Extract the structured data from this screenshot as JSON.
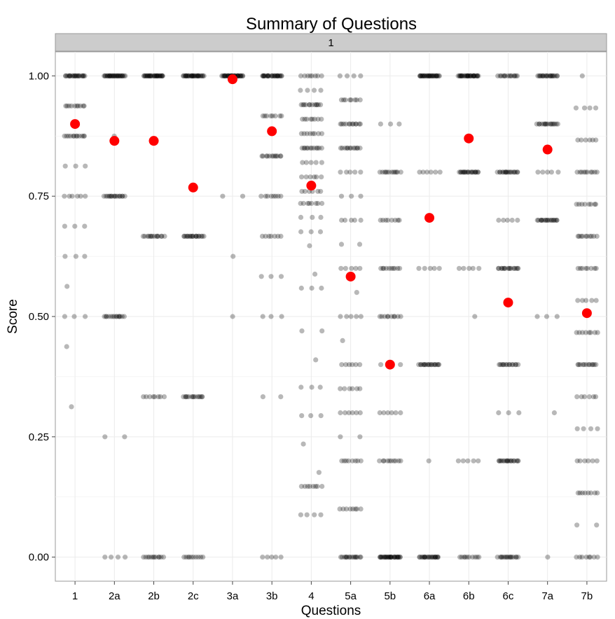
{
  "chart_data": {
    "type": "scatter",
    "title": "Summary of Questions",
    "facet_label": "1",
    "xlabel": "Questions",
    "ylabel": "Score",
    "categories": [
      "1",
      "2a",
      "2b",
      "2c",
      "3a",
      "3b",
      "4",
      "5a",
      "5b",
      "6a",
      "6b",
      "6c",
      "7a",
      "7b"
    ],
    "yticks": [
      0.0,
      0.25,
      0.5,
      0.75,
      1.0
    ],
    "ytick_labels": [
      "0.00",
      "0.25",
      "0.50",
      "0.75",
      "1.00"
    ],
    "ylim": [
      -0.05,
      1.05
    ],
    "grid": true,
    "point_color": "#000000",
    "mean_color": "#ff0000",
    "series": [
      {
        "values": [
          {
            "category": "1",
            "levels": [
              [
                1.0,
                22
              ],
              [
                0.9375,
                10
              ],
              [
                0.875,
                12
              ],
              [
                0.8125,
                3
              ],
              [
                0.75,
                6
              ],
              [
                0.6875,
                3
              ],
              [
                0.625,
                3
              ],
              [
                0.5625,
                1
              ],
              [
                0.5,
                3
              ],
              [
                0.4375,
                1
              ],
              [
                0.3125,
                1
              ]
            ]
          },
          {
            "category": "2a",
            "levels": [
              [
                1.0,
                30
              ],
              [
                0.875,
                1
              ],
              [
                0.75,
                16
              ],
              [
                0.5,
                14
              ],
              [
                0.25,
                2
              ],
              [
                0.0,
                4
              ]
            ]
          },
          {
            "category": "2b",
            "levels": [
              [
                1.0,
                30
              ],
              [
                0.6667,
                14
              ],
              [
                0.3333,
                8
              ],
              [
                0.0,
                12
              ]
            ]
          },
          {
            "category": "2c",
            "levels": [
              [
                1.0,
                30
              ],
              [
                0.6667,
                18
              ],
              [
                0.3333,
                14
              ],
              [
                0.0,
                10
              ]
            ]
          },
          {
            "category": "3a",
            "levels": [
              [
                1.0,
                34
              ],
              [
                0.75,
                2
              ],
              [
                0.625,
                1
              ],
              [
                0.5,
                1
              ]
            ]
          },
          {
            "category": "3b",
            "levels": [
              [
                1.0,
                26
              ],
              [
                0.9167,
                8
              ],
              [
                0.8333,
                12
              ],
              [
                0.75,
                8
              ],
              [
                0.6667,
                7
              ],
              [
                0.5833,
                3
              ],
              [
                0.5,
                3
              ],
              [
                0.3333,
                2
              ],
              [
                0.0,
                5
              ]
            ]
          },
          {
            "category": "4",
            "levels": [
              [
                1.0,
                8
              ],
              [
                0.97,
                4
              ],
              [
                0.94,
                12
              ],
              [
                0.91,
                8
              ],
              [
                0.88,
                8
              ],
              [
                0.85,
                12
              ],
              [
                0.82,
                5
              ],
              [
                0.79,
                6
              ],
              [
                0.76,
                6
              ],
              [
                0.735,
                8
              ],
              [
                0.706,
                3
              ],
              [
                0.676,
                3
              ],
              [
                0.647,
                1
              ],
              [
                0.588,
                1
              ],
              [
                0.559,
                3
              ],
              [
                0.47,
                2
              ],
              [
                0.41,
                1
              ],
              [
                0.353,
                3
              ],
              [
                0.294,
                3
              ],
              [
                0.235,
                1
              ],
              [
                0.176,
                1
              ],
              [
                0.147,
                8
              ],
              [
                0.088,
                4
              ]
            ]
          },
          {
            "category": "5a",
            "levels": [
              [
                1.0,
                4
              ],
              [
                0.95,
                8
              ],
              [
                0.9,
                12
              ],
              [
                0.85,
                12
              ],
              [
                0.8,
                5
              ],
              [
                0.75,
                3
              ],
              [
                0.7,
                5
              ],
              [
                0.65,
                2
              ],
              [
                0.6,
                5
              ],
              [
                0.55,
                1
              ],
              [
                0.5,
                5
              ],
              [
                0.45,
                1
              ],
              [
                0.4,
                6
              ],
              [
                0.35,
                6
              ],
              [
                0.3,
                6
              ],
              [
                0.25,
                2
              ],
              [
                0.2,
                8
              ],
              [
                0.1,
                8
              ],
              [
                0.0,
                16
              ]
            ]
          },
          {
            "category": "5b",
            "levels": [
              [
                0.9,
                3
              ],
              [
                0.8,
                12
              ],
              [
                0.7,
                8
              ],
              [
                0.6,
                10
              ],
              [
                0.5,
                10
              ],
              [
                0.4,
                2
              ],
              [
                0.3,
                6
              ],
              [
                0.2,
                10
              ],
              [
                0.0,
                30
              ]
            ]
          },
          {
            "category": "6a",
            "levels": [
              [
                1.0,
                30
              ],
              [
                0.8,
                6
              ],
              [
                0.6,
                5
              ],
              [
                0.4,
                18
              ],
              [
                0.2,
                1
              ],
              [
                0.0,
                22
              ]
            ]
          },
          {
            "category": "6b",
            "levels": [
              [
                1.0,
                30
              ],
              [
                0.8,
                20
              ],
              [
                0.6,
                5
              ],
              [
                0.5,
                1
              ],
              [
                0.2,
                5
              ],
              [
                0.0,
                10
              ]
            ]
          },
          {
            "category": "6c",
            "levels": [
              [
                1.0,
                14
              ],
              [
                0.8,
                18
              ],
              [
                0.7,
                5
              ],
              [
                0.6,
                16
              ],
              [
                0.4,
                14
              ],
              [
                0.3,
                3
              ],
              [
                0.2,
                18
              ],
              [
                0.0,
                16
              ]
            ]
          },
          {
            "category": "7a",
            "levels": [
              [
                1.0,
                20
              ],
              [
                0.9,
                16
              ],
              [
                0.8,
                5
              ],
              [
                0.7,
                18
              ],
              [
                0.5,
                3
              ],
              [
                0.3,
                1
              ],
              [
                0.0,
                1
              ]
            ]
          },
          {
            "category": "7b",
            "levels": [
              [
                1.0,
                1
              ],
              [
                0.9333,
                4
              ],
              [
                0.8667,
                6
              ],
              [
                0.8,
                10
              ],
              [
                0.7333,
                8
              ],
              [
                0.6667,
                10
              ],
              [
                0.6,
                8
              ],
              [
                0.5333,
                5
              ],
              [
                0.4667,
                8
              ],
              [
                0.4,
                12
              ],
              [
                0.3333,
                6
              ],
              [
                0.2667,
                4
              ],
              [
                0.2,
                6
              ],
              [
                0.1333,
                8
              ],
              [
                0.0667,
                2
              ],
              [
                0.0,
                8
              ]
            ]
          }
        ]
      },
      {
        "values": [
          {
            "category": "1",
            "mean": 0.9
          },
          {
            "category": "2a",
            "mean": 0.865
          },
          {
            "category": "2b",
            "mean": 0.865
          },
          {
            "category": "2c",
            "mean": 0.768
          },
          {
            "category": "3a",
            "mean": 0.993
          },
          {
            "category": "3b",
            "mean": 0.885
          },
          {
            "category": "4",
            "mean": 0.772
          },
          {
            "category": "5a",
            "mean": 0.583
          },
          {
            "category": "5b",
            "mean": 0.4
          },
          {
            "category": "6a",
            "mean": 0.705
          },
          {
            "category": "6b",
            "mean": 0.87
          },
          {
            "category": "6c",
            "mean": 0.529
          },
          {
            "category": "7a",
            "mean": 0.847
          },
          {
            "category": "7b",
            "mean": 0.507
          }
        ]
      }
    ]
  }
}
